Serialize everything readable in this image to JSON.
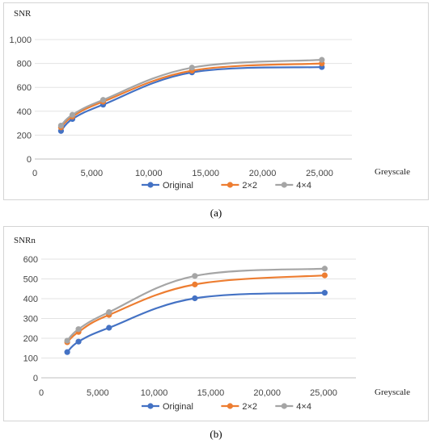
{
  "captions": {
    "a": "(a)",
    "b": "(b)"
  },
  "chart_data": [
    {
      "type": "line",
      "panel": "a",
      "ylabel": "SNR",
      "xlabel": "Greyscale",
      "x": [
        2300,
        3300,
        6000,
        13800,
        25200
      ],
      "xlim": [
        0,
        25000
      ],
      "ylim": [
        0,
        1000
      ],
      "xticks": [
        0,
        5000,
        10000,
        15000,
        20000,
        25000
      ],
      "xtick_labels": [
        "0",
        "5,000",
        "10,000",
        "15,000",
        "20,000",
        "25,000"
      ],
      "yticks": [
        0,
        200,
        400,
        600,
        800,
        1000
      ],
      "ytick_labels": [
        "0",
        "200",
        "400",
        "600",
        "800",
        "1,000"
      ],
      "grid": true,
      "legend": "bottom",
      "series": [
        {
          "name": "Original",
          "color": "#4472c4",
          "values": [
            235,
            335,
            455,
            725,
            770
          ]
        },
        {
          "name": "2×2",
          "color": "#ed7d31",
          "values": [
            265,
            355,
            480,
            740,
            800
          ]
        },
        {
          "name": "4×4",
          "color": "#a5a5a5",
          "values": [
            280,
            370,
            495,
            765,
            830
          ]
        }
      ]
    },
    {
      "type": "line",
      "panel": "b",
      "ylabel": "SNRn",
      "xlabel": "Greyscale",
      "x": [
        2300,
        3300,
        6000,
        13600,
        25100
      ],
      "xlim": [
        0,
        25000
      ],
      "ylim": [
        0,
        600
      ],
      "xticks": [
        0,
        5000,
        10000,
        15000,
        20000,
        25000
      ],
      "xtick_labels": [
        "0",
        "5,000",
        "10,000",
        "15,000",
        "20,000",
        "25,000"
      ],
      "yticks": [
        0,
        100,
        200,
        300,
        400,
        500,
        600
      ],
      "ytick_labels": [
        "0",
        "100",
        "200",
        "300",
        "400",
        "500",
        "600"
      ],
      "grid": true,
      "legend": "bottom",
      "series": [
        {
          "name": "Original",
          "color": "#4472c4",
          "values": [
            130,
            183,
            253,
            402,
            430
          ]
        },
        {
          "name": "2×2",
          "color": "#ed7d31",
          "values": [
            180,
            232,
            318,
            472,
            518
          ]
        },
        {
          "name": "4×4",
          "color": "#a5a5a5",
          "values": [
            188,
            246,
            332,
            515,
            552
          ]
        }
      ]
    }
  ]
}
